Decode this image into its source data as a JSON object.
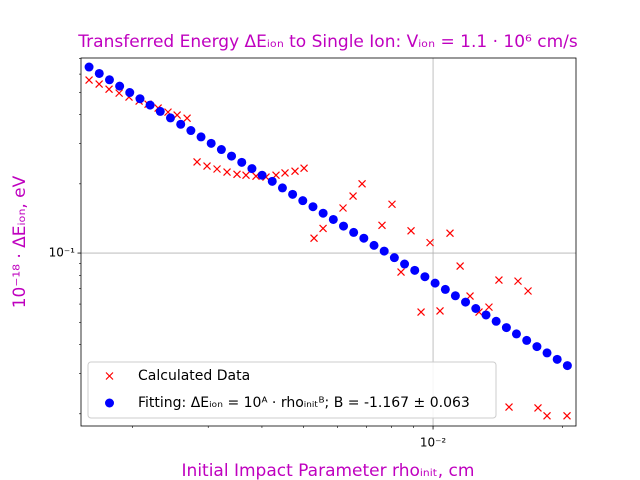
{
  "chart_data": {
    "type": "scatter",
    "title": "Transferred Energy ΔEᵢₒₙ to Single Ion: Vᵢₒₙ = 1.1 · 10⁶ cm/s",
    "x_label": "Initial Impact Parameter rhoᵢₙᵢₜ, cm",
    "y_label": "10⁻¹⁸ · ΔEᵢₒₙ, eV",
    "xscale": "log",
    "yscale": "log",
    "grid": true,
    "legend_loc": "lower left",
    "xlim": [
      0.001518,
      0.0215
    ],
    "ylim": [
      0.0177,
      0.705
    ],
    "xticks": [
      {
        "value": 0.01,
        "label": "10⁻²"
      }
    ],
    "yticks": [
      {
        "value": 0.1,
        "label": "10⁻¹"
      }
    ],
    "xminorticks": [
      0.002,
      0.003,
      0.004,
      0.005,
      0.006,
      0.007,
      0.008,
      0.009,
      0.02
    ],
    "yminorticks": [
      0.02,
      0.03,
      0.04,
      0.05,
      0.06,
      0.07,
      0.08,
      0.09,
      0.2,
      0.3,
      0.4,
      0.5,
      0.6,
      0.7
    ],
    "series": [
      {
        "name": "Calculated Data",
        "color": "#ff0000",
        "marker": "x",
        "x": [
          0.001585,
          0.001673,
          0.001764,
          0.001862,
          0.001963,
          0.002072,
          0.002174,
          0.002294,
          0.002419,
          0.00254,
          0.002679,
          0.002826,
          0.002981,
          0.003145,
          0.003318,
          0.0035,
          0.003673,
          0.003875,
          0.004088,
          0.004313,
          0.004526,
          0.004775,
          0.005012,
          0.005287,
          0.005549,
          0.006175,
          0.006516,
          0.006838,
          0.007608,
          0.008027,
          0.008424,
          0.008888,
          0.009378,
          0.009841,
          0.01038,
          0.01095,
          0.01156,
          0.01219,
          0.01279,
          0.01349,
          0.01423,
          0.01502,
          0.01576,
          0.01663,
          0.01754,
          0.01841,
          0.02049
        ],
        "values": [
          0.565,
          0.543,
          0.516,
          0.496,
          0.477,
          0.458,
          0.444,
          0.427,
          0.41,
          0.398,
          0.386,
          0.249,
          0.239,
          0.232,
          0.225,
          0.22,
          0.218,
          0.216,
          0.214,
          0.218,
          0.223,
          0.227,
          0.234,
          0.116,
          0.128,
          0.157,
          0.177,
          0.2,
          0.132,
          0.163,
          0.0827,
          0.125,
          0.0554,
          0.111,
          0.056,
          0.122,
          0.0878,
          0.065,
          0.0554,
          0.0582,
          0.0763,
          0.0214,
          0.0755,
          0.0684,
          0.0212,
          0.0196,
          0.0196
        ]
      },
      {
        "name": "Fitting: ΔEᵢₒₙ = 10ᴬ · rhoᵢₙᵢₜᴮ; B = -1.167 ± 0.063",
        "color": "#0000ff",
        "marker": "o",
        "x": [
          0.001585,
          0.001674,
          0.001768,
          0.001867,
          0.001971,
          0.002082,
          0.002198,
          0.002321,
          0.002451,
          0.002589,
          0.002734,
          0.002887,
          0.003048,
          0.003219,
          0.003399,
          0.00359,
          0.003791,
          0.004003,
          0.004227,
          0.004464,
          0.004714,
          0.004978,
          0.005257,
          0.005551,
          0.005862,
          0.006191,
          0.006537,
          0.006903,
          0.00729,
          0.007698,
          0.008129,
          0.008585,
          0.009066,
          0.009573,
          0.01011,
          0.01068,
          0.01127,
          0.0119,
          0.01257,
          0.01328,
          0.01402,
          0.01481,
          0.01563,
          0.01651,
          0.01744,
          0.01841,
          0.01944,
          0.02053
        ],
        "values": [
          0.644,
          0.604,
          0.567,
          0.532,
          0.499,
          0.469,
          0.44,
          0.413,
          0.387,
          0.363,
          0.341,
          0.32,
          0.3,
          0.282,
          0.264,
          0.248,
          0.233,
          0.218,
          0.205,
          0.192,
          0.18,
          0.169,
          0.159,
          0.149,
          0.14,
          0.131,
          0.123,
          0.116,
          0.108,
          0.102,
          0.0955,
          0.0896,
          0.0841,
          0.0789,
          0.074,
          0.0695,
          0.0652,
          0.0612,
          0.0574,
          0.0538,
          0.0505,
          0.0474,
          0.0445,
          0.0417,
          0.0392,
          0.0368,
          0.0345,
          0.0324
        ]
      }
    ]
  }
}
